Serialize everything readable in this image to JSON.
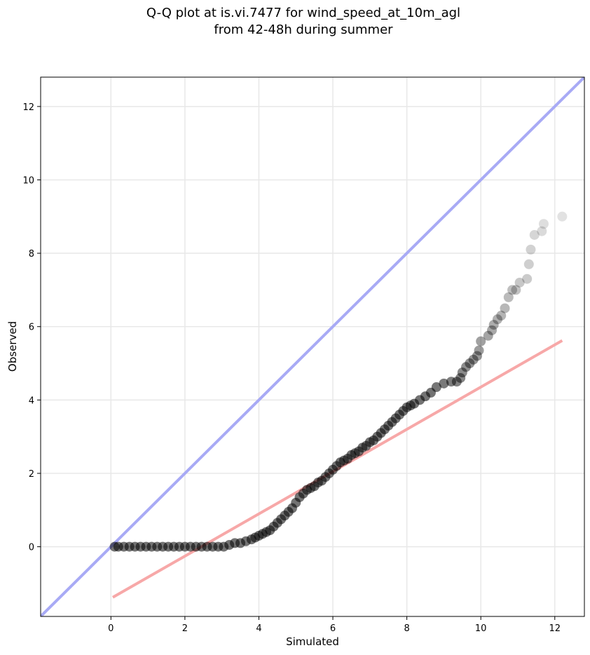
{
  "chart_data": {
    "type": "scatter",
    "title_line1": "Q-Q plot at is.vi.7477 for wind_speed_at_10m_agl",
    "title_line2": "from 42-48h during summer",
    "xlabel": "Simulated",
    "ylabel": "Observed",
    "xlim": [
      -1.9,
      12.8
    ],
    "ylim": [
      -1.9,
      12.8
    ],
    "xticks": [
      0,
      2,
      4,
      6,
      8,
      10,
      12
    ],
    "yticks": [
      0,
      2,
      4,
      6,
      8,
      10,
      12
    ],
    "grid": true,
    "colors": {
      "points": "#000000",
      "identity_line": "#a8aaf5",
      "fit_line": "#f7a8a8",
      "grid": "#e8e8e8"
    },
    "identity_line": {
      "x": [
        -1.9,
        12.8
      ],
      "y": [
        -1.9,
        12.8
      ]
    },
    "fit_line": {
      "x": [
        0.05,
        12.2
      ],
      "y": [
        -1.38,
        5.62
      ]
    },
    "points": [
      [
        0.1,
        0.0
      ],
      [
        0.2,
        0.0
      ],
      [
        0.35,
        0.0
      ],
      [
        0.5,
        0.0
      ],
      [
        0.65,
        0.0
      ],
      [
        0.8,
        0.0
      ],
      [
        0.95,
        0.0
      ],
      [
        1.1,
        0.0
      ],
      [
        1.25,
        0.0
      ],
      [
        1.4,
        0.0
      ],
      [
        1.55,
        0.0
      ],
      [
        1.7,
        0.0
      ],
      [
        1.85,
        0.0
      ],
      [
        2.0,
        0.0
      ],
      [
        2.15,
        0.0
      ],
      [
        2.3,
        0.0
      ],
      [
        2.45,
        0.0
      ],
      [
        2.6,
        0.0
      ],
      [
        2.75,
        0.0
      ],
      [
        2.9,
        0.0
      ],
      [
        3.05,
        0.0
      ],
      [
        3.2,
        0.05
      ],
      [
        3.35,
        0.1
      ],
      [
        3.5,
        0.1
      ],
      [
        3.65,
        0.15
      ],
      [
        3.8,
        0.2
      ],
      [
        3.9,
        0.25
      ],
      [
        4.0,
        0.3
      ],
      [
        4.1,
        0.35
      ],
      [
        4.2,
        0.4
      ],
      [
        4.3,
        0.45
      ],
      [
        4.4,
        0.55
      ],
      [
        4.5,
        0.65
      ],
      [
        4.6,
        0.75
      ],
      [
        4.7,
        0.85
      ],
      [
        4.8,
        0.95
      ],
      [
        4.9,
        1.05
      ],
      [
        5.0,
        1.2
      ],
      [
        5.1,
        1.35
      ],
      [
        5.2,
        1.45
      ],
      [
        5.3,
        1.55
      ],
      [
        5.4,
        1.6
      ],
      [
        5.5,
        1.65
      ],
      [
        5.6,
        1.75
      ],
      [
        5.7,
        1.8
      ],
      [
        5.8,
        1.9
      ],
      [
        5.9,
        2.0
      ],
      [
        6.0,
        2.1
      ],
      [
        6.1,
        2.2
      ],
      [
        6.2,
        2.3
      ],
      [
        6.3,
        2.35
      ],
      [
        6.4,
        2.4
      ],
      [
        6.5,
        2.5
      ],
      [
        6.6,
        2.55
      ],
      [
        6.7,
        2.6
      ],
      [
        6.8,
        2.7
      ],
      [
        6.9,
        2.75
      ],
      [
        7.0,
        2.85
      ],
      [
        7.1,
        2.9
      ],
      [
        7.2,
        3.0
      ],
      [
        7.3,
        3.1
      ],
      [
        7.4,
        3.2
      ],
      [
        7.5,
        3.3
      ],
      [
        7.6,
        3.4
      ],
      [
        7.7,
        3.5
      ],
      [
        7.8,
        3.6
      ],
      [
        7.9,
        3.7
      ],
      [
        8.0,
        3.8
      ],
      [
        8.1,
        3.85
      ],
      [
        8.2,
        3.9
      ],
      [
        8.35,
        4.0
      ],
      [
        8.5,
        4.1
      ],
      [
        8.65,
        4.2
      ],
      [
        8.8,
        4.35
      ],
      [
        9.0,
        4.45
      ],
      [
        9.2,
        4.5
      ],
      [
        9.35,
        4.5
      ],
      [
        9.45,
        4.6
      ],
      [
        9.5,
        4.75
      ],
      [
        9.6,
        4.9
      ],
      [
        9.7,
        5.0
      ],
      [
        9.8,
        5.1
      ],
      [
        9.9,
        5.2
      ],
      [
        9.95,
        5.35
      ],
      [
        10.0,
        5.6
      ],
      [
        10.2,
        5.75
      ],
      [
        10.3,
        5.9
      ],
      [
        10.35,
        6.05
      ],
      [
        10.45,
        6.2
      ],
      [
        10.55,
        6.3
      ],
      [
        10.65,
        6.5
      ],
      [
        10.75,
        6.8
      ],
      [
        10.85,
        7.0
      ],
      [
        10.95,
        7.0
      ],
      [
        11.05,
        7.2
      ],
      [
        11.25,
        7.3
      ],
      [
        11.3,
        7.7
      ],
      [
        11.35,
        8.1
      ],
      [
        11.45,
        8.5
      ],
      [
        11.65,
        8.6
      ],
      [
        11.7,
        8.8
      ],
      [
        12.2,
        9.0
      ]
    ]
  }
}
